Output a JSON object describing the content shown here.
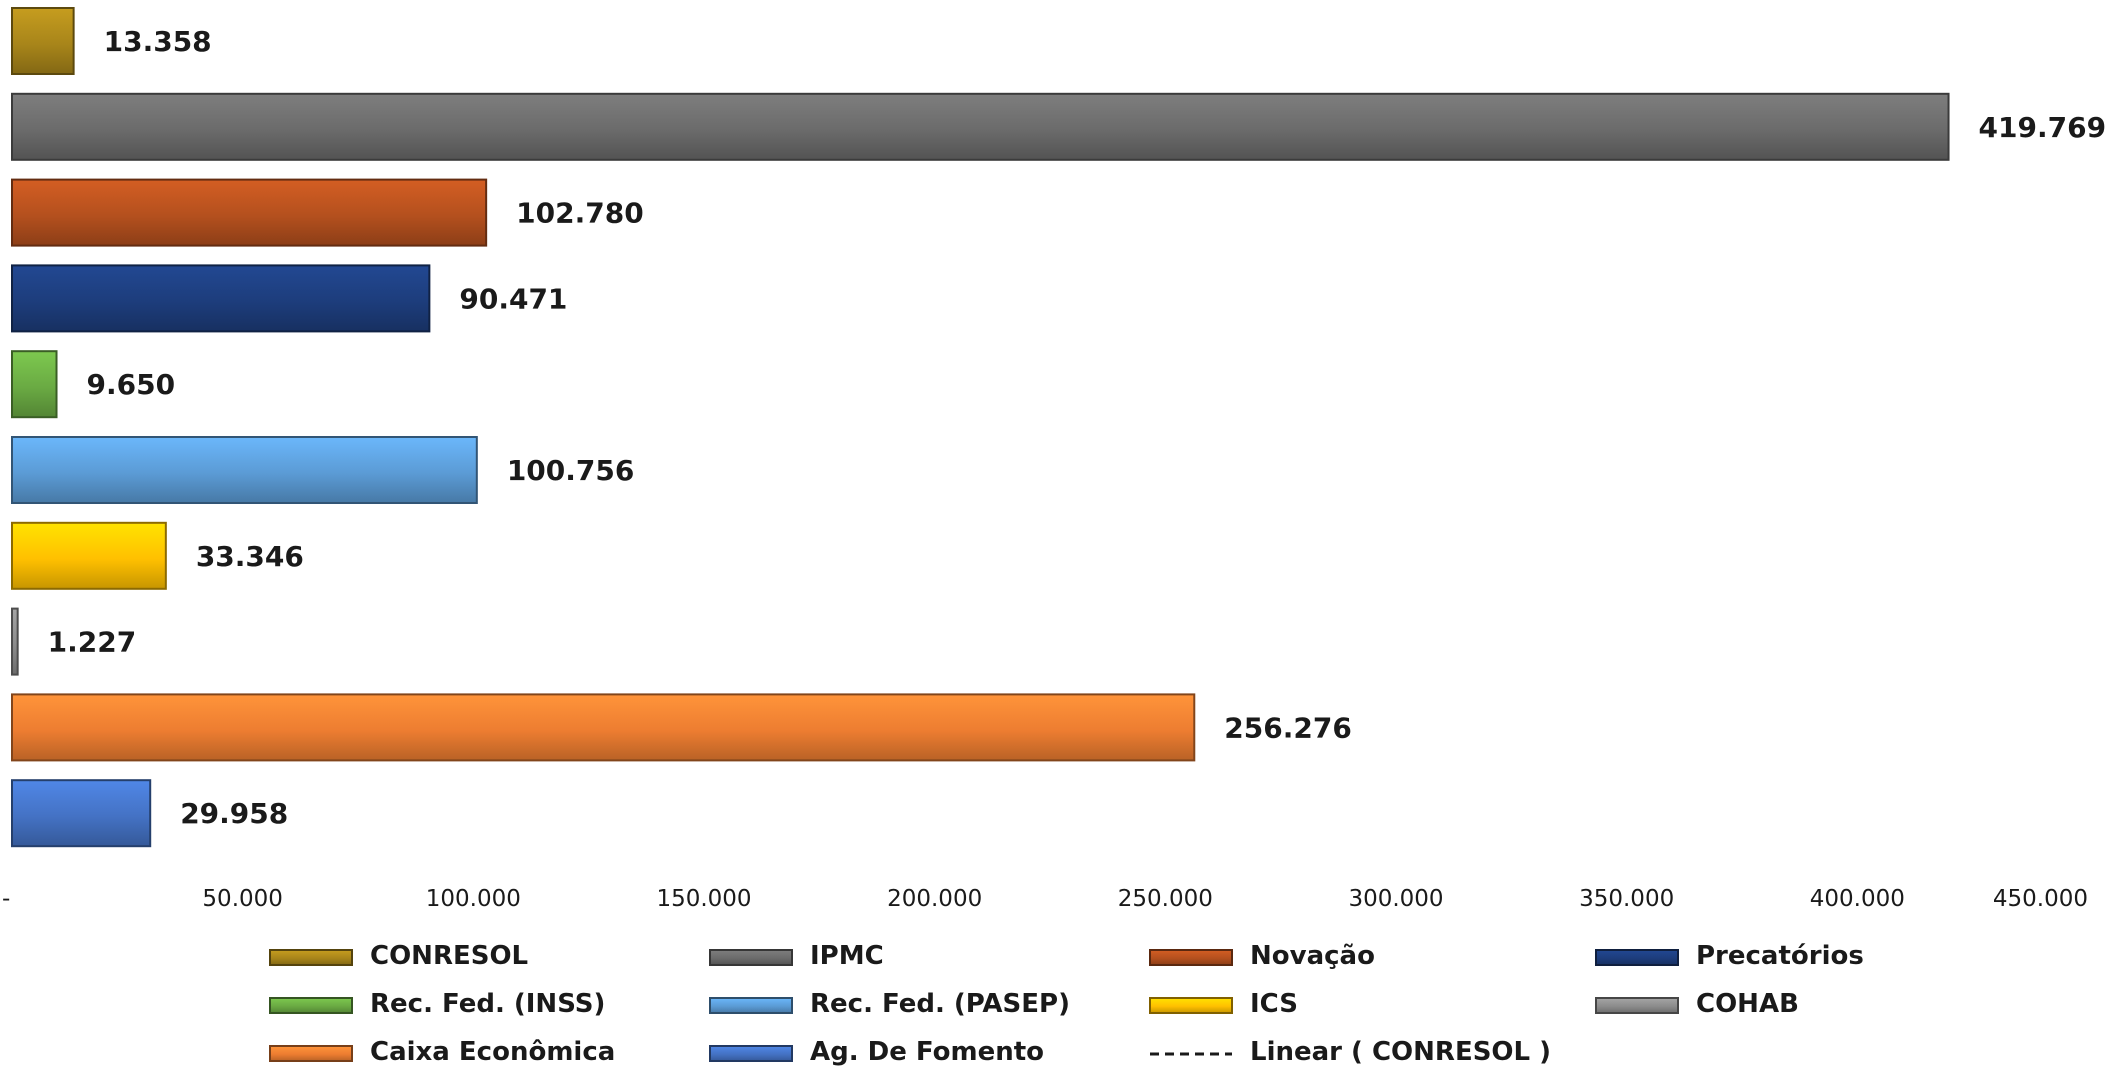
{
  "chart_data": {
    "type": "bar",
    "orientation": "horizontal",
    "categories": [
      "CONRESOL",
      "IPMC",
      "Novação",
      "Precatórios",
      "Rec. Fed. (INSS)",
      "Rec. Fed. (PASEP)",
      "ICS",
      "COHAB",
      "Caixa Econômica",
      "Ag. De Fomento"
    ],
    "values": [
      13358,
      419769,
      102780,
      90471,
      9650,
      100756,
      33346,
      1227,
      256276,
      29958
    ],
    "value_labels": [
      "13.358",
      "419.769",
      "102.780",
      "90.471",
      "9.650",
      "100.756",
      "33.346",
      "1.227",
      "256.276",
      "29.958"
    ],
    "colors": [
      "#a8851a",
      "#6b6b6b",
      "#b4501e",
      "#1d3d7c",
      "#6aaa43",
      "#5b9bd5",
      "#ffc000",
      "#8c8c8c",
      "#ed7d31",
      "#4472c4"
    ],
    "xlim": [
      0,
      450000
    ],
    "x_ticks": [
      0,
      50000,
      100000,
      150000,
      200000,
      250000,
      300000,
      350000,
      400000,
      450000
    ],
    "x_tick_labels": [
      "-",
      "50.000",
      "100.000",
      "150.000",
      "200.000",
      "250.000",
      "300.000",
      "350.000",
      "400.000",
      "450.000"
    ],
    "grid": false,
    "title": "",
    "xlabel": "",
    "ylabel": "",
    "legend": {
      "position": "bottom",
      "entries": [
        {
          "label": "CONRESOL",
          "color": "#a8851a",
          "kind": "bar"
        },
        {
          "label": "IPMC",
          "color": "#6b6b6b",
          "kind": "bar"
        },
        {
          "label": "Novação",
          "color": "#b4501e",
          "kind": "bar"
        },
        {
          "label": "Precatórios",
          "color": "#1d3d7c",
          "kind": "bar"
        },
        {
          "label": "Rec. Fed. (INSS)",
          "color": "#6aaa43",
          "kind": "bar"
        },
        {
          "label": "Rec. Fed. (PASEP)",
          "color": "#5b9bd5",
          "kind": "bar"
        },
        {
          "label": "ICS",
          "color": "#ffc000",
          "kind": "bar"
        },
        {
          "label": "COHAB",
          "color": "#8c8c8c",
          "kind": "bar"
        },
        {
          "label": "Caixa Econômica",
          "color": "#ed7d31",
          "kind": "bar"
        },
        {
          "label": "Ag. De Fomento",
          "color": "#4472c4",
          "kind": "bar"
        },
        {
          "label": "Linear ( CONRESOL )",
          "color": "#1a1a1a",
          "kind": "dashed-line"
        }
      ]
    }
  }
}
